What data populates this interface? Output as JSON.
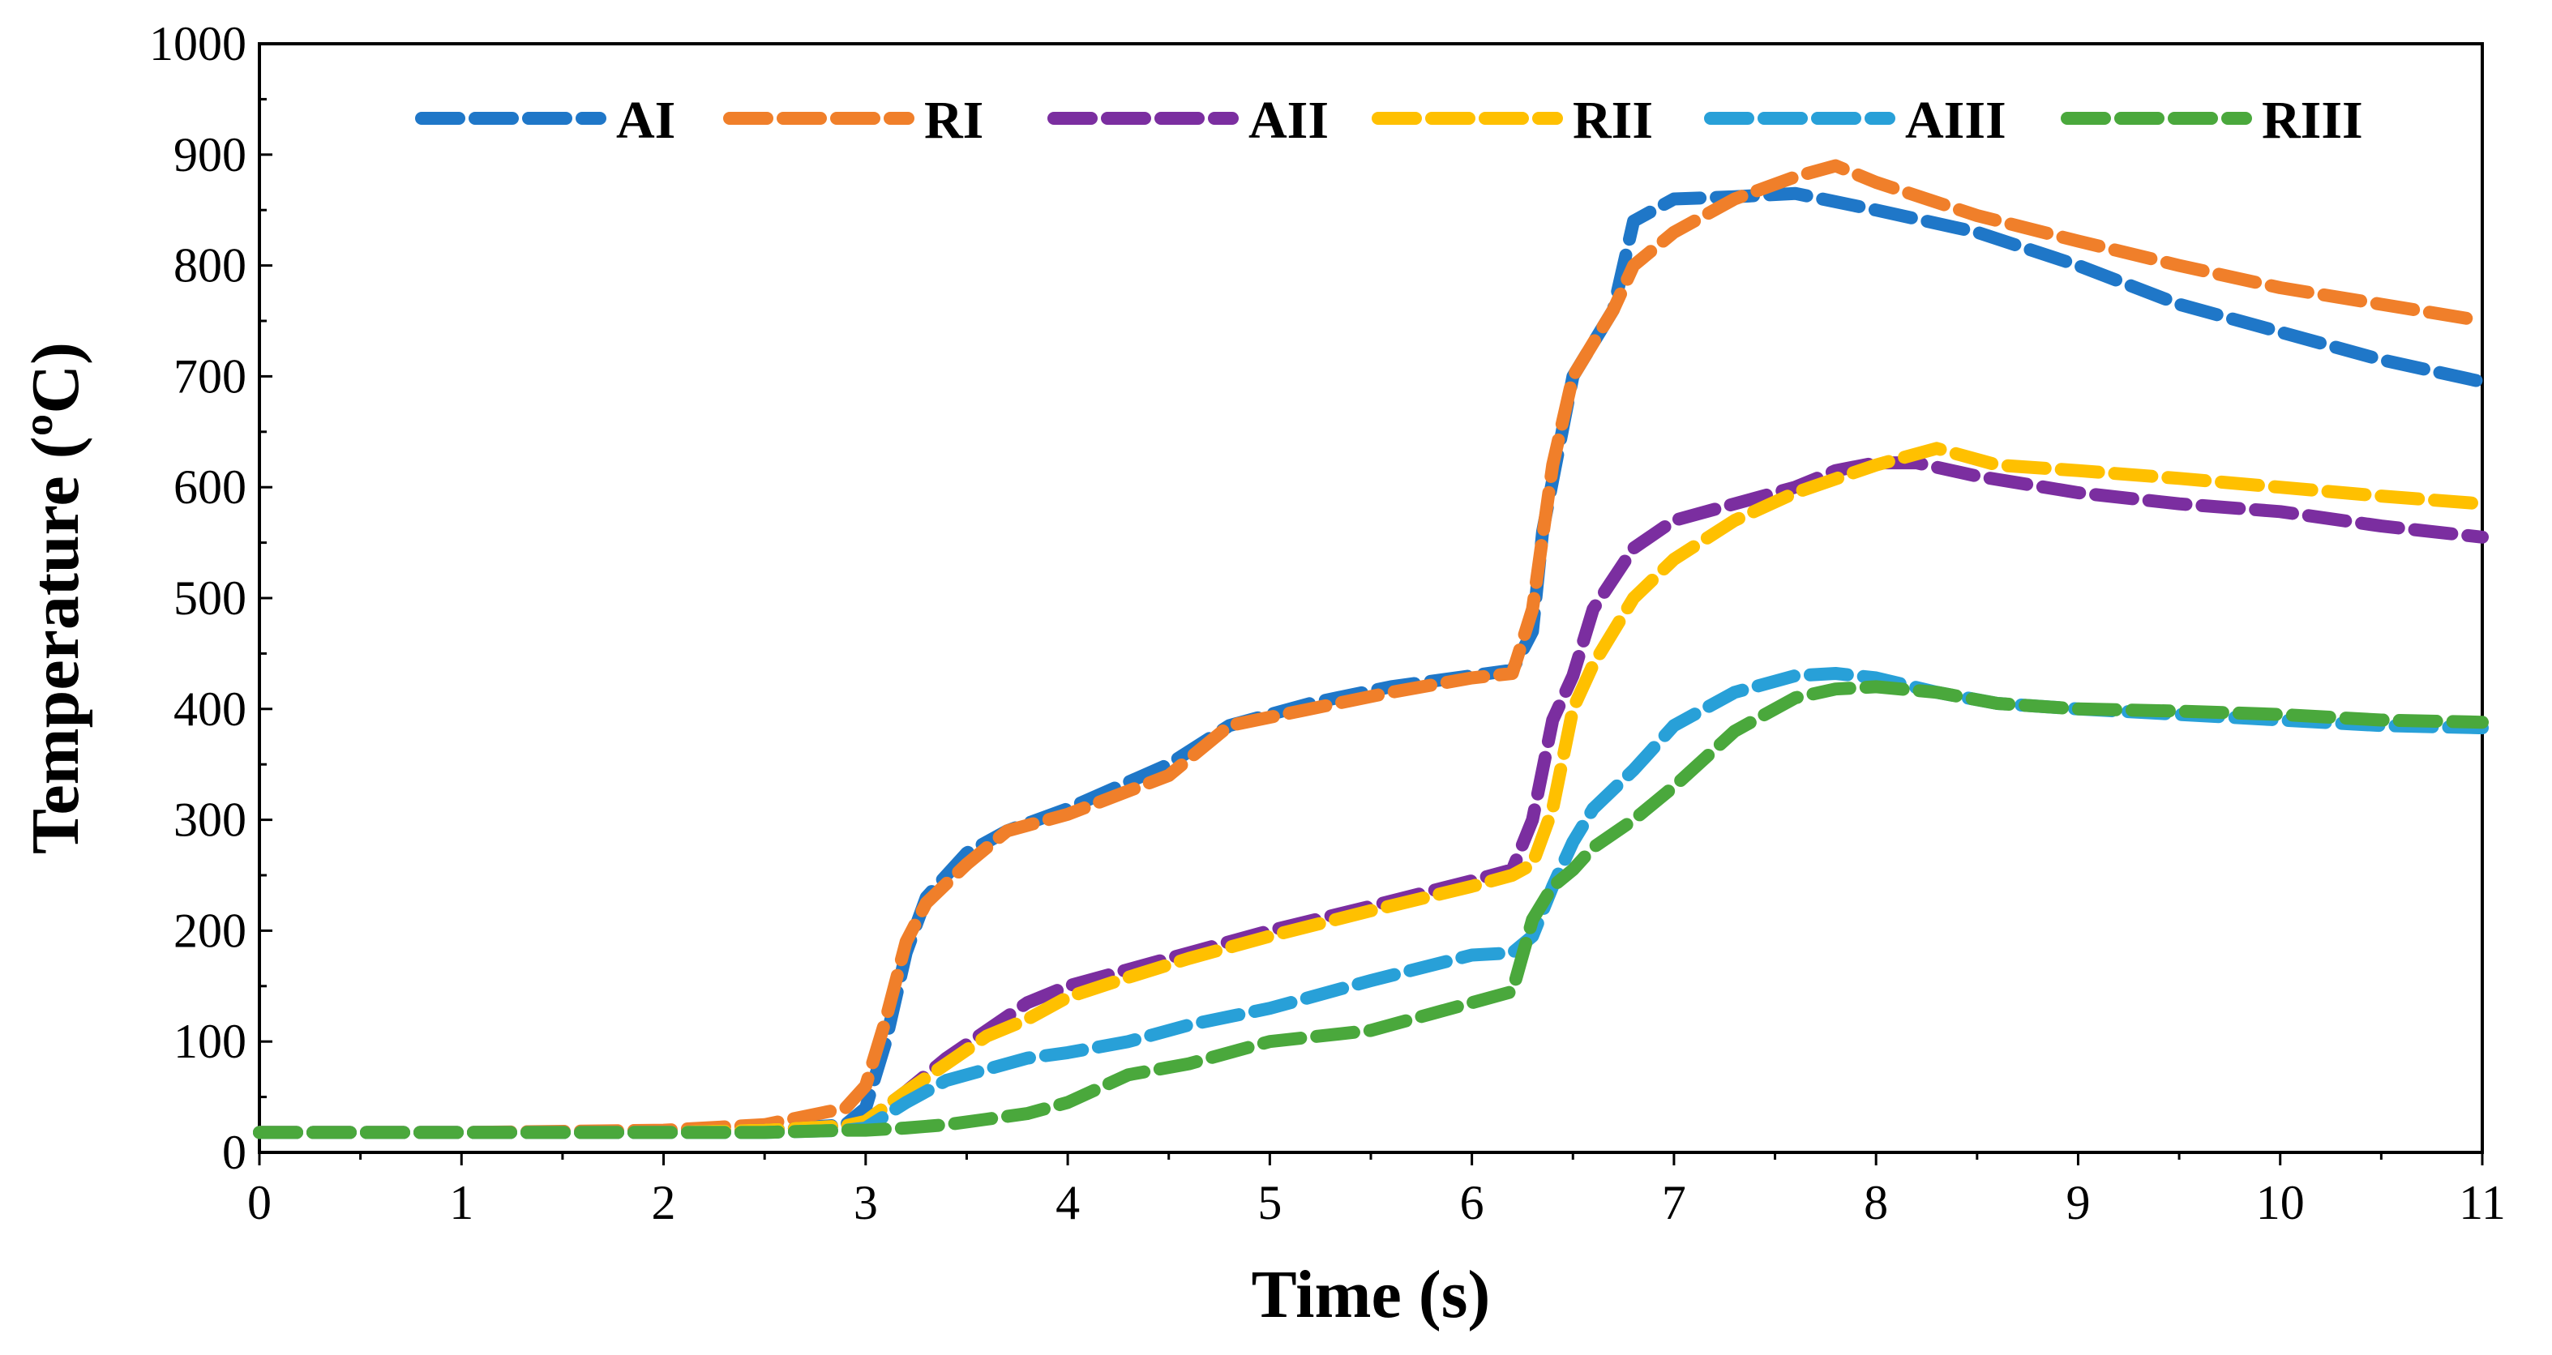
{
  "chart_data": {
    "type": "line",
    "title": "",
    "xlabel": "Time (s)",
    "ylabel": "Temperature (ºC)",
    "xlim": [
      0,
      11
    ],
    "ylim": [
      0,
      1000
    ],
    "xticks": [
      "0",
      "1",
      "2",
      "3",
      "4",
      "5",
      "6",
      "7",
      "8",
      "9",
      "10",
      "11"
    ],
    "yticks": [
      "0",
      "100",
      "200",
      "300",
      "400",
      "500",
      "600",
      "700",
      "800",
      "900",
      "1000"
    ],
    "grid": false,
    "legend_position": "top",
    "series": [
      {
        "name": "AI",
        "color": "#1f77c8",
        "x": [
          0,
          1,
          2,
          2.5,
          2.9,
          3.0,
          3.1,
          3.2,
          3.3,
          3.5,
          3.7,
          4.0,
          4.5,
          4.8,
          5.2,
          5.6,
          6.0,
          6.2,
          6.3,
          6.35,
          6.5,
          6.7,
          6.8,
          7.0,
          7.3,
          7.6,
          8.0,
          8.5,
          9.0,
          9.5,
          10.0,
          10.5,
          11.0
        ],
        "y": [
          18,
          18,
          18,
          20,
          25,
          40,
          100,
          180,
          230,
          270,
          290,
          310,
          350,
          385,
          405,
          420,
          430,
          435,
          470,
          560,
          700,
          760,
          840,
          860,
          862,
          865,
          850,
          830,
          800,
          765,
          740,
          715,
          695
        ]
      },
      {
        "name": "RI",
        "color": "#f07f2a",
        "x": [
          0,
          1,
          2,
          2.5,
          2.9,
          3.0,
          3.1,
          3.2,
          3.3,
          3.5,
          3.7,
          4.0,
          4.5,
          4.8,
          5.2,
          5.6,
          6.0,
          6.2,
          6.3,
          6.4,
          6.5,
          6.7,
          6.8,
          7.0,
          7.3,
          7.6,
          7.8,
          8.0,
          8.5,
          9.0,
          9.5,
          10.0,
          10.5,
          11.0
        ],
        "y": [
          18,
          18,
          20,
          25,
          40,
          60,
          120,
          190,
          225,
          260,
          290,
          305,
          340,
          385,
          400,
          415,
          428,
          432,
          490,
          620,
          700,
          760,
          800,
          830,
          860,
          880,
          890,
          875,
          845,
          822,
          800,
          780,
          765,
          750
        ]
      },
      {
        "name": "AII",
        "color": "#7b2ea0",
        "x": [
          0,
          1,
          2,
          2.5,
          2.9,
          3.0,
          3.2,
          3.4,
          3.6,
          3.8,
          4.0,
          4.3,
          4.6,
          5.0,
          5.5,
          6.0,
          6.1,
          6.2,
          6.3,
          6.4,
          6.5,
          6.6,
          6.8,
          7.0,
          7.3,
          7.6,
          7.8,
          8.0,
          8.2,
          8.5,
          9.0,
          9.5,
          10.0,
          10.5,
          11.0
        ],
        "y": [
          18,
          18,
          18,
          20,
          24,
          28,
          55,
          85,
          110,
          135,
          150,
          165,
          180,
          200,
          222,
          245,
          250,
          255,
          300,
          390,
          430,
          490,
          545,
          570,
          585,
          600,
          615,
          622,
          622,
          610,
          595,
          585,
          578,
          565,
          555
        ]
      },
      {
        "name": "RII",
        "color": "#ffc000",
        "x": [
          0,
          1,
          2,
          2.5,
          2.9,
          3.0,
          3.2,
          3.4,
          3.6,
          3.8,
          4.0,
          4.3,
          4.6,
          5.0,
          5.5,
          6.0,
          6.2,
          6.3,
          6.4,
          6.5,
          6.6,
          6.8,
          7.0,
          7.3,
          7.6,
          8.0,
          8.3,
          8.6,
          9.0,
          9.5,
          10.0,
          10.5,
          11.0
        ],
        "y": [
          18,
          18,
          18,
          20,
          24,
          28,
          55,
          80,
          105,
          120,
          140,
          158,
          175,
          195,
          218,
          240,
          250,
          260,
          310,
          400,
          440,
          500,
          535,
          570,
          595,
          620,
          635,
          620,
          615,
          608,
          600,
          592,
          585
        ]
      },
      {
        "name": "AIII",
        "color": "#28a0d8",
        "x": [
          0,
          1,
          2,
          2.5,
          2.9,
          3.0,
          3.2,
          3.4,
          3.6,
          3.8,
          4.0,
          4.3,
          4.6,
          5.0,
          5.5,
          6.0,
          6.2,
          6.3,
          6.4,
          6.5,
          6.6,
          6.8,
          7.0,
          7.3,
          7.6,
          7.8,
          8.0,
          8.3,
          8.6,
          9.0,
          9.5,
          10.0,
          10.5,
          11.0
        ],
        "y": [
          18,
          18,
          18,
          18,
          20,
          22,
          45,
          65,
          75,
          85,
          90,
          100,
          115,
          130,
          155,
          178,
          180,
          195,
          240,
          280,
          310,
          345,
          385,
          415,
          430,
          432,
          428,
          415,
          405,
          400,
          395,
          390,
          385,
          383
        ]
      },
      {
        "name": "RIII",
        "color": "#4aa83c",
        "x": [
          0,
          1,
          2,
          2.5,
          2.9,
          3.0,
          3.2,
          3.4,
          3.6,
          3.8,
          4.0,
          4.3,
          4.6,
          5.0,
          5.5,
          6.0,
          6.2,
          6.3,
          6.4,
          6.5,
          6.6,
          6.8,
          7.0,
          7.3,
          7.6,
          7.8,
          8.0,
          8.3,
          8.6,
          9.0,
          9.5,
          10.0,
          10.5,
          11.0
        ],
        "y": [
          18,
          18,
          18,
          18,
          20,
          20,
          22,
          25,
          30,
          35,
          45,
          70,
          80,
          100,
          110,
          135,
          145,
          210,
          240,
          255,
          275,
          300,
          330,
          380,
          410,
          418,
          420,
          415,
          405,
          400,
          398,
          395,
          390,
          388
        ]
      }
    ]
  }
}
